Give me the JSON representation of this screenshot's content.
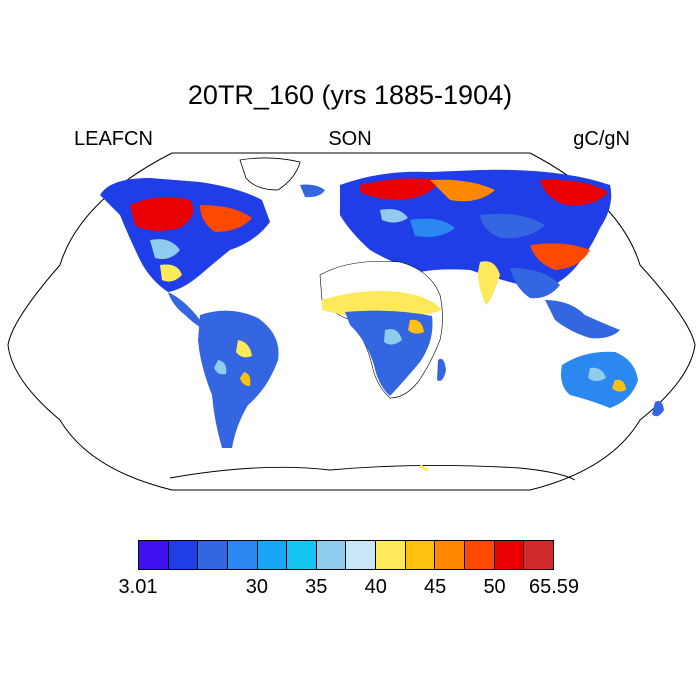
{
  "title": "20TR_160 (yrs 1885-1904)",
  "variable": "LEAFCN",
  "season": "SON",
  "units": "gC/gN",
  "colorbar": {
    "colors": [
      "#3f10f0",
      "#1f3ee8",
      "#3366e0",
      "#2a88f0",
      "#1aa6f5",
      "#14c4f2",
      "#90ccee",
      "#c8e6f7",
      "#fde95a",
      "#ffc010",
      "#ff8800",
      "#ff4800",
      "#ea0000",
      "#d22a2a"
    ],
    "tick_labels": [
      "3.01",
      "30",
      "35",
      "40",
      "45",
      "50",
      "65.59"
    ]
  },
  "map": {
    "projection": "Robinson",
    "ocean_color": "#ffffff",
    "coastline_color": "#000000"
  }
}
